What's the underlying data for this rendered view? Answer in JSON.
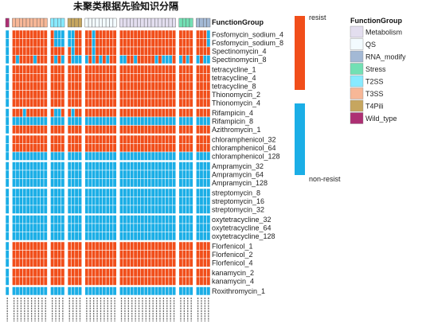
{
  "chart_data": {
    "type": "heatmap",
    "title": "未聚类根据先验知识分隔",
    "annotation_title": "FunctionGroup",
    "rows": [
      "Fosfomycin_sodium_4",
      "Fosfomycin_sodium_8",
      "Spectinomycin_4",
      "Spectinomycin_8",
      "tetracycline_1",
      "tetracycline_4",
      "tetracycline_8",
      "Thionomycin_2",
      "Thionomycin_4",
      "Rifampicin_4",
      "Rifampicin_8",
      "Azithromycin_1",
      "chloramphenicol_32",
      "chloramphenicol_64",
      "chloramphenicol_128",
      "Ampramycin_32",
      "Ampramycin_64",
      "Ampramycin_128",
      "streptomycin_8",
      "streptomycin_16",
      "streptomycin_32",
      "oxytetracycline_32",
      "oxytetracycline_64",
      "oxytetracycline_128",
      "Florfenicol_1",
      "Florfenicol_2",
      "Florfenicol_4",
      "kanamycin_2",
      "kanamycin_4",
      "Roxithromycin_1"
    ],
    "row_gaps_after": [
      3,
      8,
      11,
      14,
      17,
      20,
      23,
      26,
      28
    ],
    "groups": [
      {
        "name": "Wild_type",
        "count": 1,
        "color": "#AD2F73"
      },
      {
        "name": "T3SS",
        "count": 10,
        "color": "#F7B797"
      },
      {
        "name": "T2SS",
        "count": 4,
        "color": "#88EAFF"
      },
      {
        "name": "T4Pili",
        "count": 4,
        "color": "#C6A65F"
      },
      {
        "name": "QS",
        "count": 9,
        "color": "#F3FBFF"
      },
      {
        "name": "Metabolism",
        "count": 16,
        "color": "#E3DEEF"
      },
      {
        "name": "Stress",
        "count": 4,
        "color": "#72E0B4"
      },
      {
        "name": "RNA_modify",
        "count": 4,
        "color": "#A3B9D5"
      }
    ],
    "legend_groups": [
      {
        "name": "Metabolism",
        "color": "#E3DEEF"
      },
      {
        "name": "QS",
        "color": "#F3FBFF"
      },
      {
        "name": "RNA_modify",
        "color": "#A3B9D5"
      },
      {
        "name": "Stress",
        "color": "#72E0B4"
      },
      {
        "name": "T2SS",
        "color": "#88EAFF"
      },
      {
        "name": "T3SS",
        "color": "#F7B797"
      },
      {
        "name": "T4Pili",
        "color": "#C6A65F"
      },
      {
        "name": "Wild_type",
        "color": "#AD2F73"
      }
    ],
    "value_legend": [
      {
        "label": "resist",
        "color": "#F14E1A"
      },
      {
        "label": "non-resist",
        "color": "#1BAEE6"
      }
    ],
    "values": [
      "0111111111110000011110111111111111111111111111111110",
      "0111111111110000011110111111111111111111111111111110",
      "0111111111111111011110111111111111111111111111111111",
      "0101111011110101000010101011001101111101000101010100",
      "0111111111111111111111111111111111111111111111111111",
      "0111111111111111111111111111111111111111111111111111",
      "0111111111111111111111111111111111111111111111111111",
      "0111111111111111111111111111111111111111111111111111",
      "0111111111111111111111111111111111111111111111111111",
      "0111011111110011011111111111111111111111111111111111",
      "0000000000000000000000000000000000000000000000000000",
      "0111111111111111111111111111111111111111111111111111",
      "0111111111111111111111111111111111111111111111111111",
      "0111111111111111111111111111111111111111111111111111",
      "0000000000000000000000000000000000000000000000000000",
      "0000000000000000000000000000000000000000000000000000",
      "0000000000000000000000000000000000000000000000000000",
      "0000000000000000000000000000000000000000000000000000",
      "0000000000000000000000000000000000000000000000000000",
      "0000000000000000000000000000000000000000000000000000",
      "0000000000000000000000000000000000000000000000000000",
      "0000000000000000000000000000000000000000000000000000",
      "0000000000000000000000000000000000000000000000000000",
      "0000000000000000000000000000000000000000000000000000",
      "0111111111111111111111111111111111111111111111111111",
      "0111111111111111111111111111111111111111111111111111",
      "0111111111111111111111111111111111111111111111111111",
      "0111111111111111111111111111111111111111111111111111",
      "0111111111111111111111111111111111111111111111111111",
      "0000000000000000000000000000000000000000000000000000"
    ]
  }
}
